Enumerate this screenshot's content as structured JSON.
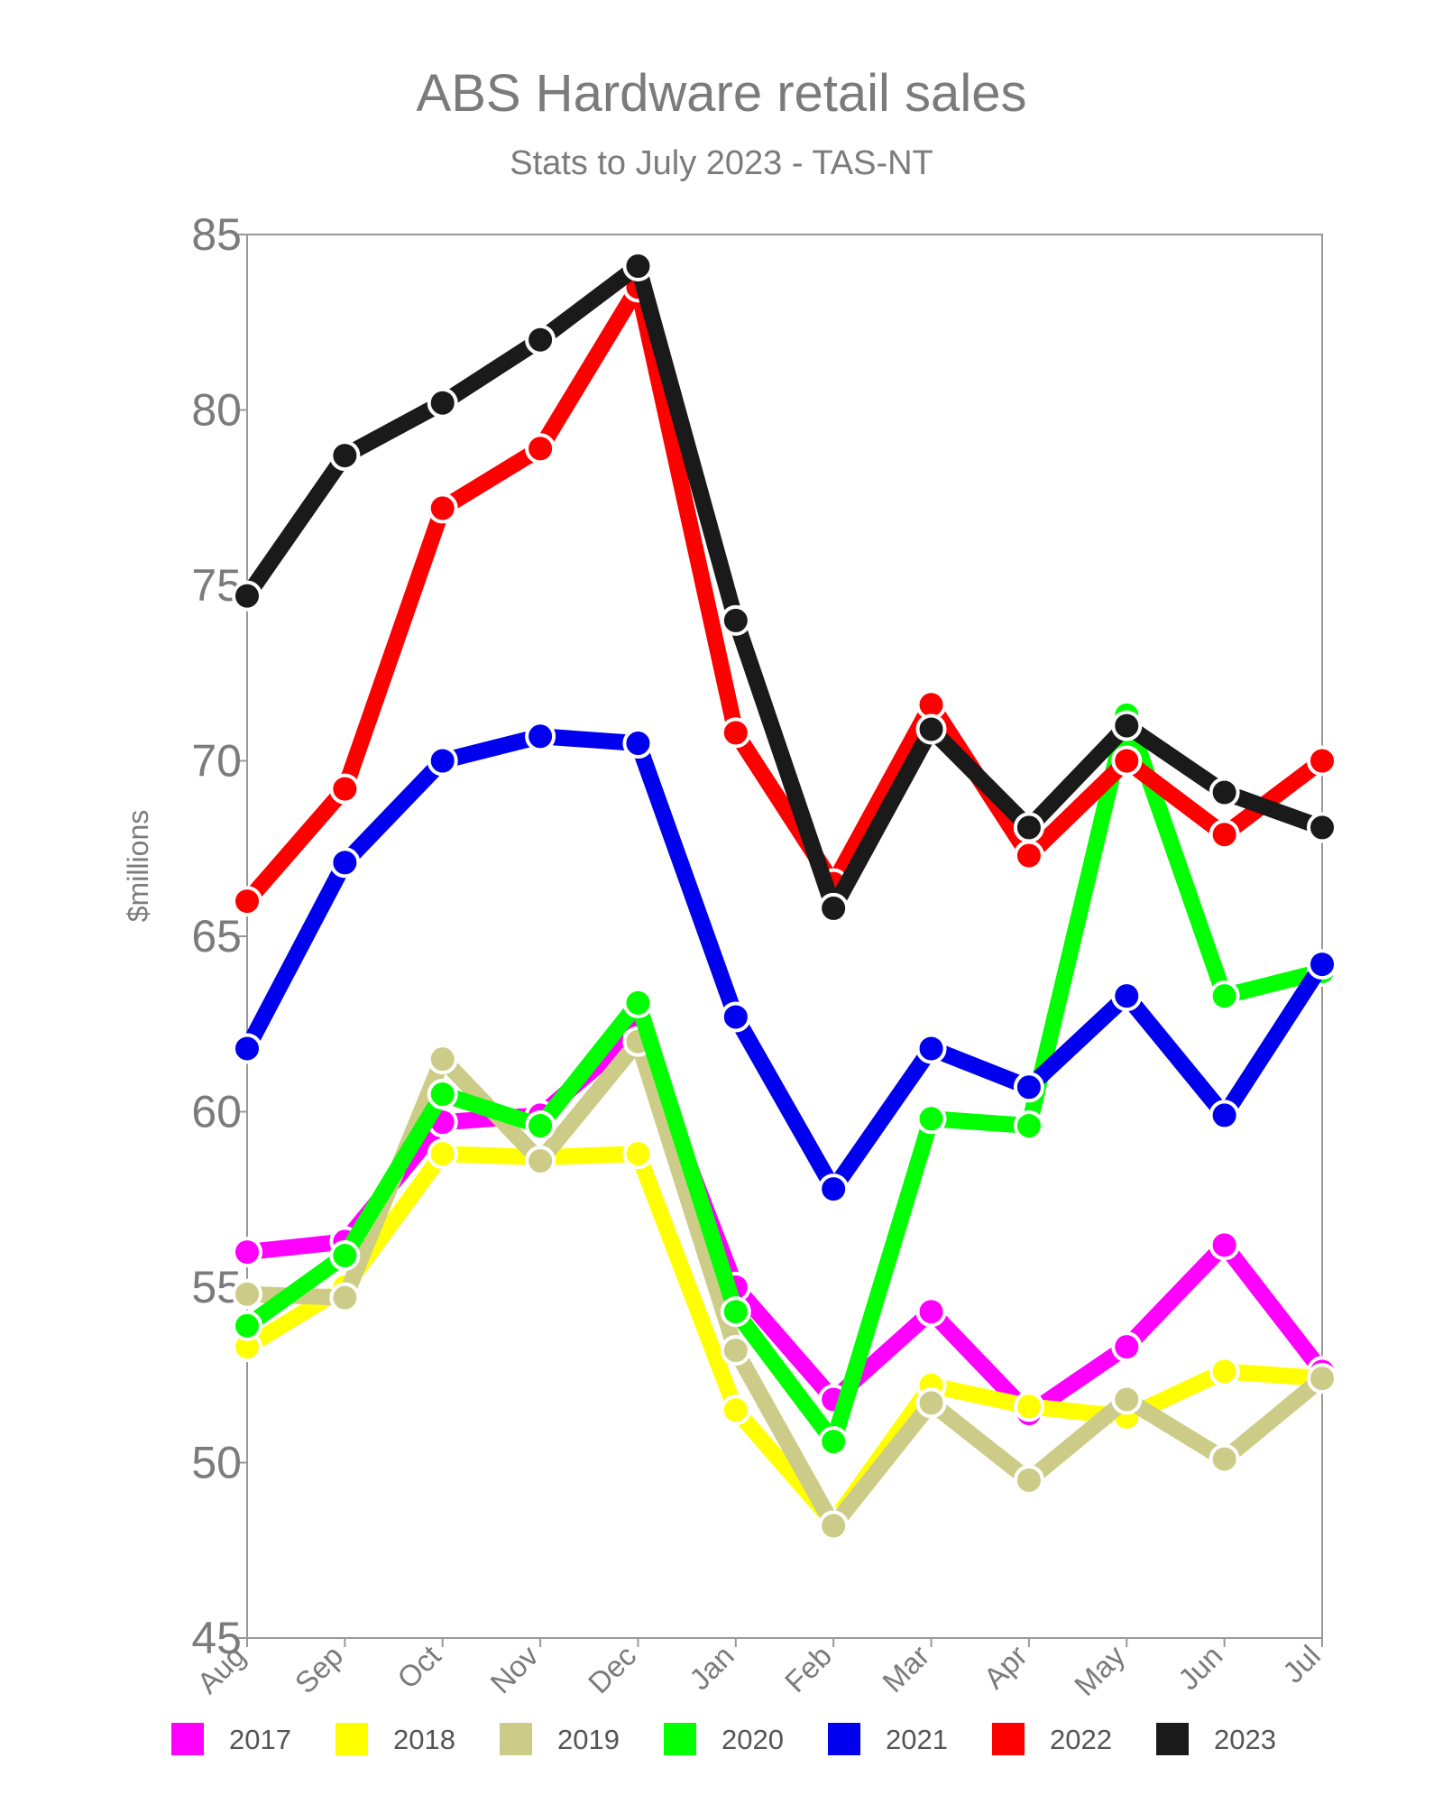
{
  "chart_data": {
    "type": "line",
    "title": "ABS Hardware retail sales",
    "subtitle": "Stats to July 2023 - TAS-NT",
    "xlabel": "",
    "ylabel": "$millions",
    "ylim": [
      45,
      85
    ],
    "yticks": [
      45,
      50,
      55,
      60,
      65,
      70,
      75,
      80,
      85
    ],
    "categories": [
      "Aug",
      "Sep",
      "Oct",
      "Nov",
      "Dec",
      "Jan",
      "Feb",
      "Mar",
      "Apr",
      "May",
      "Jun",
      "Jul"
    ],
    "grid": false,
    "legend_position": "bottom",
    "series": [
      {
        "name": "2017",
        "color": "#ff00ff",
        "values": [
          56.0,
          56.3,
          59.7,
          59.9,
          62.3,
          55.0,
          51.8,
          54.3,
          51.4,
          53.3,
          56.2,
          52.6
        ]
      },
      {
        "name": "2018",
        "color": "#ffff00",
        "values": [
          53.3,
          55.0,
          58.8,
          58.7,
          58.8,
          51.5,
          48.3,
          52.2,
          51.6,
          51.3,
          52.6,
          52.4
        ]
      },
      {
        "name": "2019",
        "color": "#cccc88",
        "values": [
          54.8,
          54.7,
          61.5,
          58.6,
          62.0,
          53.2,
          48.2,
          51.7,
          49.5,
          51.8,
          50.1,
          52.4
        ]
      },
      {
        "name": "2020",
        "color": "#00ff00",
        "values": [
          53.9,
          55.9,
          60.5,
          59.6,
          63.1,
          54.3,
          50.6,
          59.8,
          59.6,
          71.3,
          63.3,
          64.0
        ]
      },
      {
        "name": "2021",
        "color": "#0000ee",
        "values": [
          61.8,
          67.1,
          70.0,
          70.7,
          70.5,
          62.7,
          57.8,
          61.8,
          60.7,
          63.3,
          59.9,
          64.2
        ]
      },
      {
        "name": "2022",
        "color": "#ff0000",
        "values": [
          66.0,
          69.2,
          77.2,
          78.9,
          83.5,
          70.8,
          66.5,
          71.6,
          67.3,
          70.0,
          67.9,
          70.0
        ]
      },
      {
        "name": "2023",
        "color": "#1a1a1a",
        "values": [
          74.7,
          78.7,
          80.2,
          82.0,
          84.1,
          74.0,
          65.8,
          70.9,
          68.1,
          71.0,
          69.1,
          68.1
        ]
      }
    ]
  }
}
